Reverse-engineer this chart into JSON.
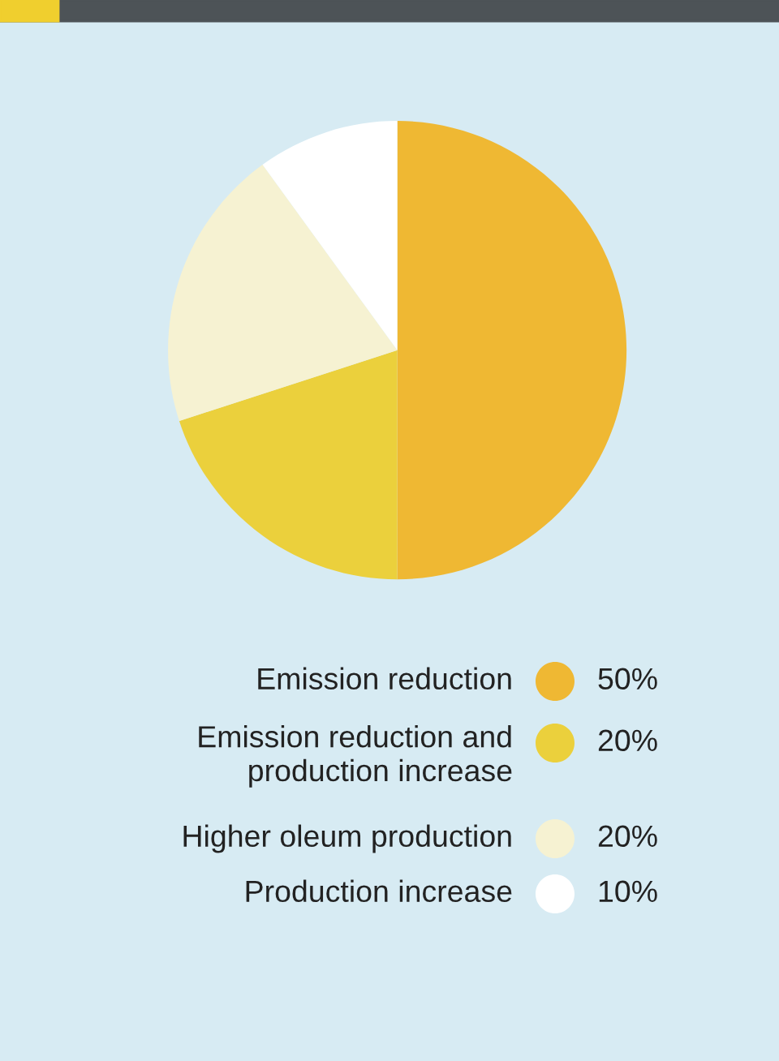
{
  "chart_data": {
    "type": "pie",
    "categories": [
      "Emission reduction",
      "Emission reduction and\nproduction increase",
      "Higher oleum production",
      "Production increase"
    ],
    "values": [
      50,
      20,
      20,
      10
    ],
    "colors": [
      "#efb833",
      "#ebd03c",
      "#f6f2d2",
      "#ffffff"
    ],
    "value_labels": [
      "50%",
      "20%",
      "20%",
      "10%"
    ],
    "legend": "bottom"
  }
}
